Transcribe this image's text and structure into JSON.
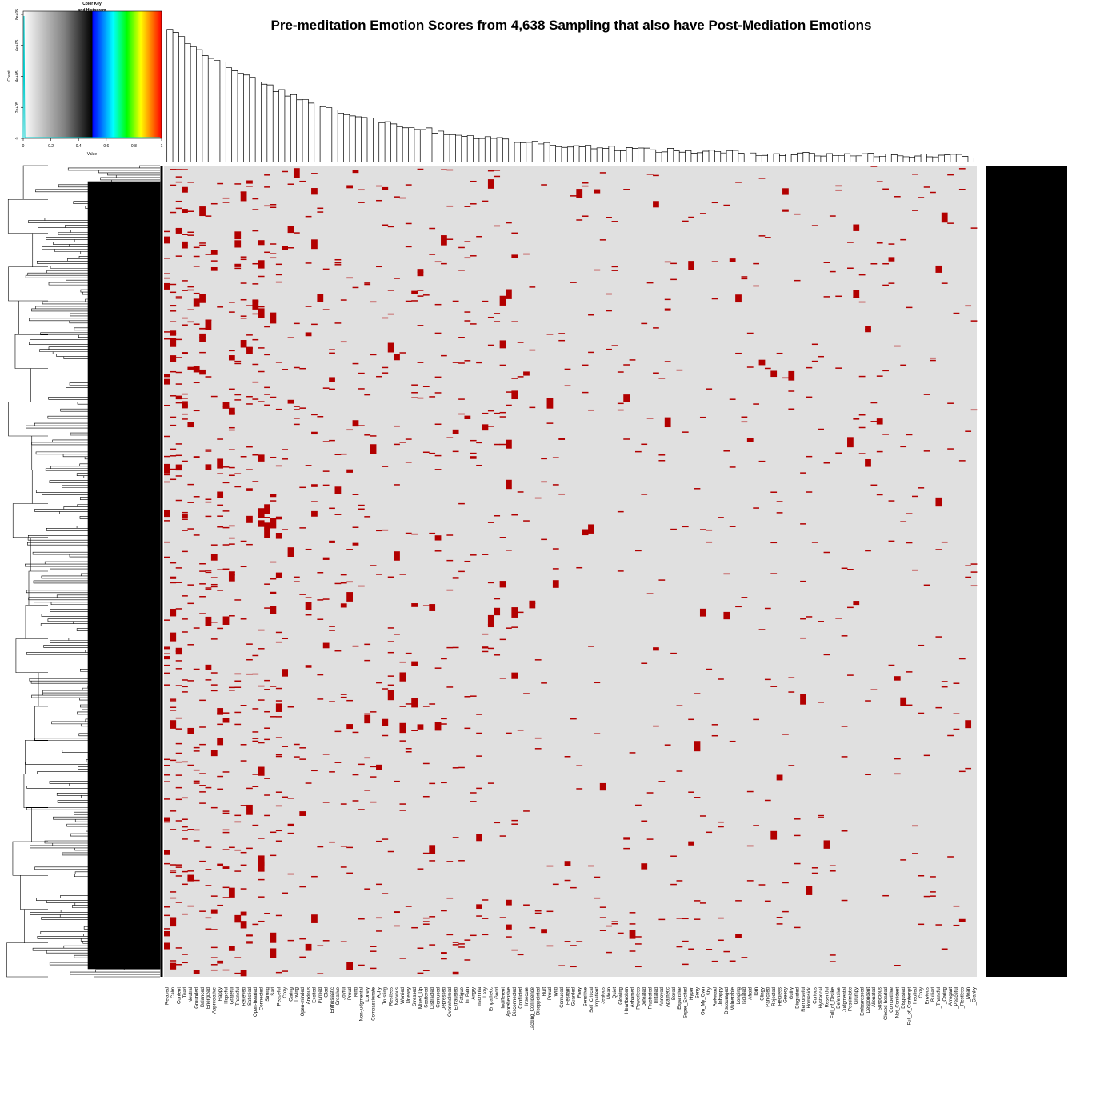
{
  "chart_data": {
    "type": "heatmap",
    "title": "Pre-meditation Emotion Scores from 4,638 Sampling that also have Post-Mediation Emotions",
    "color_key": {
      "title_line1": "Color Key",
      "title_line2": "and Histogram",
      "xlabel": "Value",
      "ylabel": "Count",
      "x_ticks": [
        "0",
        "0.2",
        "0.4",
        "0.6",
        "0.8",
        "1"
      ],
      "y_ticks": [
        "0",
        "2e+05",
        "4e+05",
        "6e+05",
        "8e+05"
      ],
      "gradient_stops": [
        "#ffffff",
        "#808080",
        "#000000",
        "#0000ff",
        "#00ffff",
        "#00ff00",
        "#ffff00",
        "#ff0000"
      ]
    },
    "colors": {
      "background": "#e0e0e0",
      "hit": "#b20000",
      "sidebar": "#000000"
    },
    "row_count": 4638,
    "columns": [
      "Relaxed",
      "Calm",
      "Content",
      "Tired",
      "Neutral",
      "Grounded",
      "Balanced",
      "Energized",
      "Appreciative",
      "Happy",
      "Hopeful",
      "Grateful",
      "Thankful",
      "Relieved",
      "Satisfied",
      "Open-hearted",
      "Connected",
      "Strong",
      "Sad",
      "Peaceful",
      "Cozy",
      "Caring",
      "Loving",
      "Open-minded",
      "Anxious",
      "Excited",
      "Purified",
      "Glad",
      "Enthusiastic",
      "Creative",
      "Joyful",
      "Proud",
      "Kind",
      "Non-judgmental",
      "Lonely",
      "Compassionate",
      "Achy",
      "Trusting",
      "Restless",
      "Nervous",
      "Worried",
      "Uneasy",
      "Stressed",
      "Mixed_Up",
      "Scattered",
      "Distracted",
      "Confused",
      "Depressed",
      "Overwhelmed",
      "Exhausted",
      "Fatigue",
      "In_Pain",
      "Angry",
      "Insomnia",
      "Lazy",
      "Empathetic",
      "Good",
      "Indifferent",
      "Apprehensive",
      "Disconnected",
      "Conflicted",
      "Insecure",
      "Lacking_Confidence",
      "Disappointed",
      "Hurt",
      "Proud",
      "Wild",
      "Confused",
      "Hesitant",
      "Guarded",
      "Fiery",
      "Sensitive",
      "Self_Critical",
      "Impatient",
      "Jealous",
      "Mean",
      "Quiet",
      "Glowing",
      "Heartbroken",
      "Ashamed",
      "Powerless",
      "Defeated",
      "Frustrated",
      "Irritated",
      "Annoyed",
      "Apathetic",
      "Bored",
      "Expansive",
      "Super_Excited",
      "Hyper",
      "Sorry",
      "On_My_Own",
      "Shy",
      "Awkward",
      "Unhappy",
      "Discouraged",
      "Vulnerable",
      "Longing",
      "Isolated",
      "Afraid",
      "Torn",
      "Clingy",
      "Panicked",
      "Rejected",
      "Helpless",
      "Greedy",
      "Guilty",
      "Disgusted",
      "Remorseful",
      "Homesick",
      "Curious",
      "Hysterical",
      "Resentful",
      "Full_of_Dislike",
      "Defensive",
      "Judgmental",
      "Pessimistic",
      "Grumpy",
      "Embarrassed",
      "Despondent",
      "Alienated",
      "Suspicious",
      "Closed-hearted",
      "Competitive",
      "Not_Confident",
      "Disgusted",
      "Full_of_Contempt",
      "Insulted",
      "Cozy",
      "Envious",
      "Bullied",
      "_Thankful",
      "_Caring",
      "Arrogant",
      "_Peaceful",
      "_Restless",
      "_Mean",
      "_Cranky"
    ]
  }
}
